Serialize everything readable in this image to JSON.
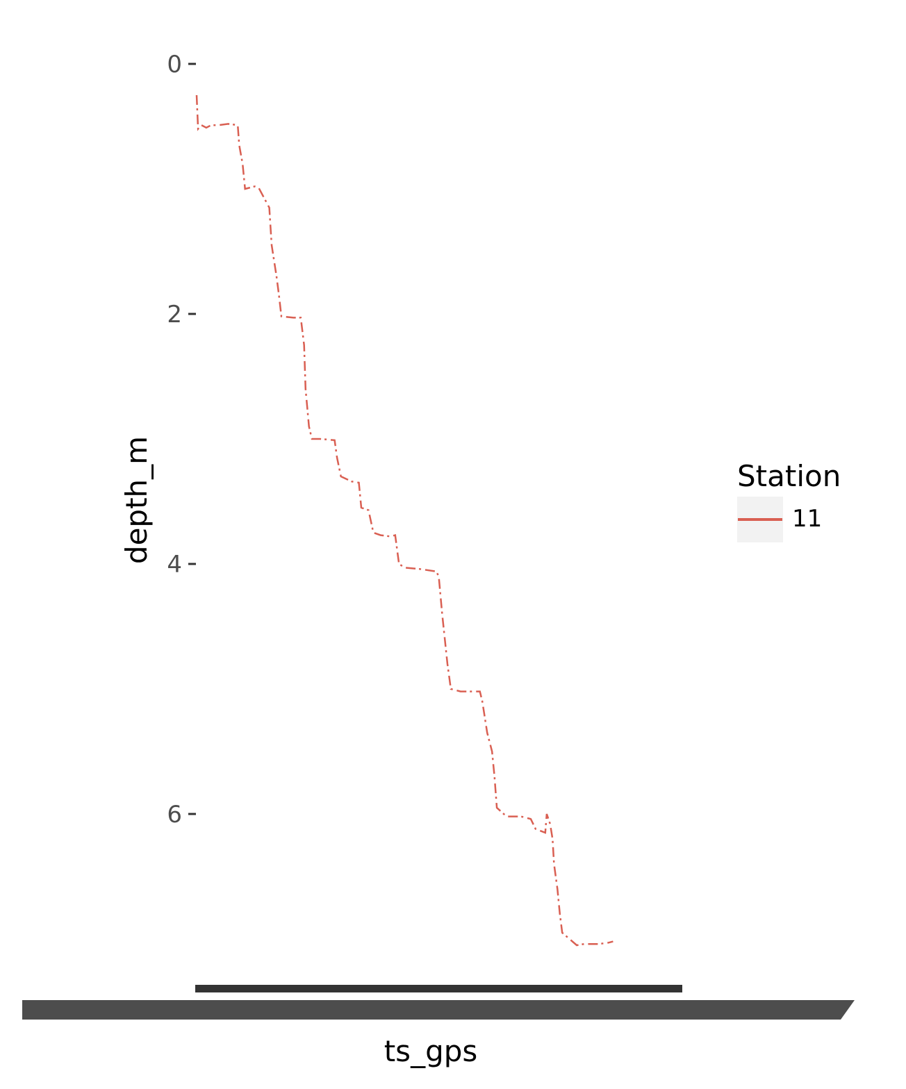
{
  "chart_data": {
    "type": "line",
    "title": "",
    "xlabel": "ts_gps",
    "ylabel": "depth_m",
    "y_reversed": true,
    "ylim": [
      -0.05,
      7.3
    ],
    "y_ticks": [
      "0",
      "2",
      "4",
      "6"
    ],
    "y_tick_values": [
      0,
      2,
      4,
      6
    ],
    "x_tick_labels_overlapping": true,
    "grid": false,
    "legend": {
      "title": "Station",
      "position": "right"
    },
    "series": [
      {
        "name": "11",
        "color": "#d95f52",
        "points": [
          [
            0.0,
            0.25
          ],
          [
            0.003,
            0.52
          ],
          [
            0.01,
            0.49
          ],
          [
            0.02,
            0.51
          ],
          [
            0.03,
            0.49
          ],
          [
            0.045,
            0.49
          ],
          [
            0.065,
            0.48
          ],
          [
            0.085,
            0.49
          ],
          [
            0.088,
            0.65
          ],
          [
            0.095,
            0.8
          ],
          [
            0.1,
            1.0
          ],
          [
            0.12,
            0.98
          ],
          [
            0.128,
            0.99
          ],
          [
            0.15,
            1.15
          ],
          [
            0.155,
            1.45
          ],
          [
            0.165,
            1.7
          ],
          [
            0.17,
            1.85
          ],
          [
            0.175,
            2.02
          ],
          [
            0.2,
            2.03
          ],
          [
            0.215,
            2.03
          ],
          [
            0.222,
            2.25
          ],
          [
            0.225,
            2.6
          ],
          [
            0.232,
            2.9
          ],
          [
            0.238,
            3.0
          ],
          [
            0.255,
            3.0
          ],
          [
            0.285,
            3.01
          ],
          [
            0.29,
            3.15
          ],
          [
            0.298,
            3.3
          ],
          [
            0.32,
            3.34
          ],
          [
            0.335,
            3.35
          ],
          [
            0.34,
            3.55
          ],
          [
            0.355,
            3.57
          ],
          [
            0.365,
            3.75
          ],
          [
            0.38,
            3.77
          ],
          [
            0.4,
            3.78
          ],
          [
            0.41,
            3.77
          ],
          [
            0.418,
            4.0
          ],
          [
            0.43,
            4.03
          ],
          [
            0.46,
            4.04
          ],
          [
            0.495,
            4.06
          ],
          [
            0.5,
            4.1
          ],
          [
            0.507,
            4.4
          ],
          [
            0.518,
            4.8
          ],
          [
            0.525,
            5.0
          ],
          [
            0.545,
            5.02
          ],
          [
            0.57,
            5.02
          ],
          [
            0.585,
            5.02
          ],
          [
            0.59,
            5.1
          ],
          [
            0.6,
            5.35
          ],
          [
            0.61,
            5.5
          ],
          [
            0.615,
            5.7
          ],
          [
            0.62,
            5.95
          ],
          [
            0.64,
            6.02
          ],
          [
            0.67,
            6.02
          ],
          [
            0.69,
            6.04
          ],
          [
            0.7,
            6.12
          ],
          [
            0.72,
            6.15
          ],
          [
            0.723,
            6.0
          ],
          [
            0.73,
            6.08
          ],
          [
            0.735,
            6.2
          ],
          [
            0.738,
            6.4
          ],
          [
            0.745,
            6.6
          ],
          [
            0.75,
            6.8
          ],
          [
            0.755,
            6.95
          ],
          [
            0.77,
            7.0
          ],
          [
            0.785,
            7.05
          ],
          [
            0.8,
            7.04
          ],
          [
            0.83,
            7.04
          ],
          [
            0.85,
            7.03
          ],
          [
            0.86,
            7.02
          ]
        ]
      }
    ]
  }
}
